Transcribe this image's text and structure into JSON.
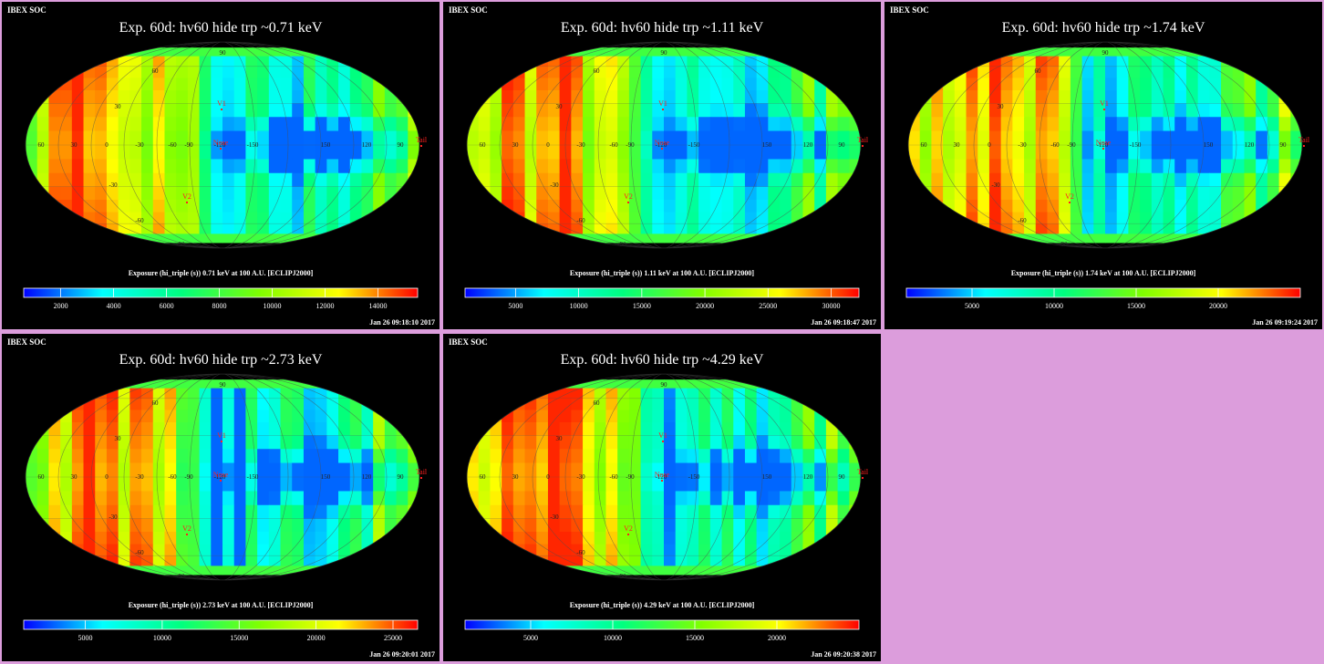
{
  "panels": [
    {
      "header": "IBEX SOC",
      "title": "Exp.   60d: hv60 hide trp ~0.71 keV",
      "colorbar_label": "Exposure (hi_triple (s))  0.71 keV at 100 A.U. [ECLIPJ2000]",
      "timestamp": "Jan 26 09:18:10 2017",
      "colorbar_ticks": [
        "2000",
        "4000",
        "6000",
        "8000",
        "10000",
        "12000",
        "14000"
      ],
      "tick_values": [
        2000,
        4000,
        6000,
        8000,
        10000,
        12000,
        14000
      ],
      "vrange": [
        600,
        15500
      ]
    },
    {
      "header": "IBEX SOC",
      "title": "Exp.   60d: hv60 hide trp ~1.11 keV",
      "colorbar_label": "Exposure (hi_triple (s))  1.11 keV at 100 A.U. [ECLIPJ2000]",
      "timestamp": "Jan 26 09:18:47 2017",
      "colorbar_ticks": [
        "5000",
        "10000",
        "15000",
        "20000",
        "25000",
        "30000"
      ],
      "tick_values": [
        5000,
        10000,
        15000,
        20000,
        25000,
        30000
      ],
      "vrange": [
        1000,
        32200
      ]
    },
    {
      "header": "IBEX SOC",
      "title": "Exp.   60d: hv60 hide trp ~1.74 keV",
      "colorbar_label": "Exposure (hi_triple (s))  1.74 keV at 100 A.U. [ECLIPJ2000]",
      "timestamp": "Jan 26 09:19:24 2017",
      "colorbar_ticks": [
        "5000",
        "10000",
        "15000",
        "20000"
      ],
      "tick_values": [
        5000,
        10000,
        15000,
        20000
      ],
      "vrange": [
        1000,
        25000
      ]
    },
    {
      "header": "IBEX SOC",
      "title": "Exp.   60d: hv60 hide trp ~2.73 keV",
      "colorbar_label": "Exposure (hi_triple (s))  2.73 keV at 100 A.U. [ECLIPJ2000]",
      "timestamp": "Jan 26 09:20:01 2017",
      "colorbar_ticks": [
        "5000",
        "10000",
        "15000",
        "20000",
        "25000"
      ],
      "tick_values": [
        5000,
        10000,
        15000,
        20000,
        25000
      ],
      "vrange": [
        1000,
        26600
      ]
    },
    {
      "header": "IBEX SOC",
      "title": "Exp.   60d: hv60 hide trp ~4.29 keV",
      "colorbar_label": "Exposure (hi_triple (s))  4.29 keV at 100 A.U. [ECLIPJ2000]",
      "timestamp": "Jan 26 09:20:38 2017",
      "colorbar_ticks": [
        "5000",
        "10000",
        "15000",
        "20000"
      ],
      "tick_values": [
        5000,
        10000,
        15000,
        20000
      ],
      "vrange": [
        1000,
        25000
      ]
    }
  ],
  "map_labels": {
    "longitudes": [
      "60",
      "30",
      "0",
      "-30",
      "-60",
      "-90",
      "-120",
      "-150",
      "150",
      "120",
      "90"
    ],
    "latitudes": [
      "60",
      "30",
      "-30",
      "-60"
    ],
    "poles": [
      "90",
      "-90"
    ],
    "markers": [
      "V1",
      "V2",
      "Nose",
      "Tail"
    ]
  },
  "colors": {
    "background": "#dc9ddc",
    "panel": "#000000",
    "marker": "#ff2020",
    "colormap": [
      "#0000ff",
      "#00ffff",
      "#00ff7f",
      "#80ff00",
      "#ffff00",
      "#ff0000"
    ]
  },
  "chart_data": {
    "type": "heatmap",
    "projection": "mollweide",
    "frame": "ECLIPJ2000",
    "units": "s",
    "legend": "bottom"
  }
}
